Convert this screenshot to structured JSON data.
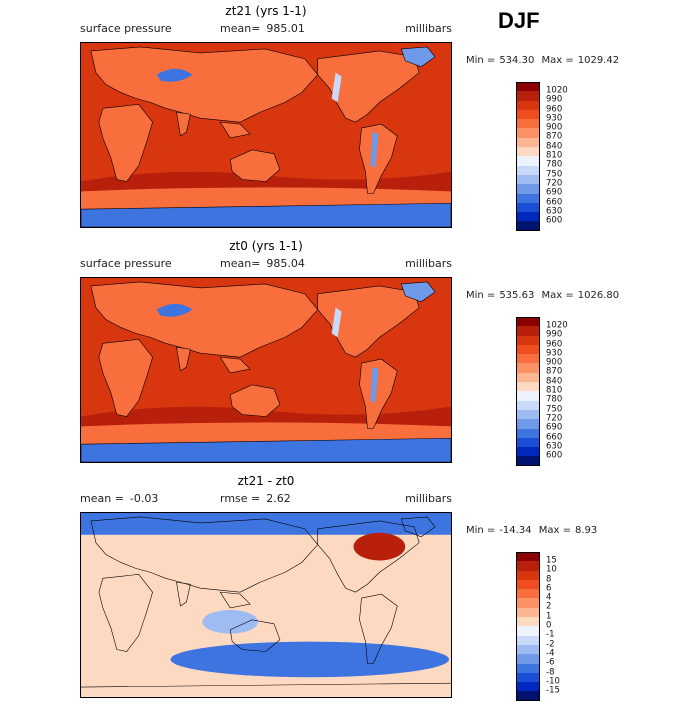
{
  "season": "DJF",
  "panels": [
    {
      "title": "zt21 (yrs 1-1)",
      "field": "surface pressure",
      "stat1_label": "mean=",
      "stat1_value": "985.01",
      "stat2_label": "",
      "stat2_value": "",
      "units": "millibars",
      "min_label": "Min =",
      "min_value": "534.30",
      "max_label": "Max =",
      "max_value": "1029.42",
      "kind": "abs",
      "levels": [
        "1020",
        "990",
        "960",
        "930",
        "900",
        "870",
        "840",
        "810",
        "780",
        "750",
        "720",
        "690",
        "660",
        "630",
        "600"
      ],
      "colors": [
        "#8b0000",
        "#b8200c",
        "#d7360f",
        "#ef4d1f",
        "#f96e3d",
        "#fb9266",
        "#fdb693",
        "#fed9c2",
        "#eef2ff",
        "#c9d9f9",
        "#9ebcf2",
        "#6f9aea",
        "#3e74e0",
        "#1a4fd5",
        "#0028c0",
        "#00146f"
      ]
    },
    {
      "title": "zt0 (yrs 1-1)",
      "field": "surface pressure",
      "stat1_label": "mean=",
      "stat1_value": "985.04",
      "stat2_label": "",
      "stat2_value": "",
      "units": "millibars",
      "min_label": "Min =",
      "min_value": "535.63",
      "max_label": "Max =",
      "max_value": "1026.80",
      "kind": "abs",
      "levels": [
        "1020",
        "990",
        "960",
        "930",
        "900",
        "870",
        "840",
        "810",
        "780",
        "750",
        "720",
        "690",
        "660",
        "630",
        "600"
      ],
      "colors": [
        "#8b0000",
        "#b8200c",
        "#d7360f",
        "#ef4d1f",
        "#f96e3d",
        "#fb9266",
        "#fdb693",
        "#fed9c2",
        "#eef2ff",
        "#c9d9f9",
        "#9ebcf2",
        "#6f9aea",
        "#3e74e0",
        "#1a4fd5",
        "#0028c0",
        "#00146f"
      ]
    },
    {
      "title": "zt21 - zt0",
      "field": "",
      "stat1_label": "mean =",
      "stat1_value": "-0.03",
      "stat2_label": "rmse =",
      "stat2_value": "2.62",
      "units": "millibars",
      "min_label": "Min =",
      "min_value": "-14.34",
      "max_label": "Max =",
      "max_value": "8.93",
      "kind": "diff",
      "levels": [
        "15",
        "10",
        "8",
        "6",
        "4",
        "2",
        "1",
        "0",
        "-1",
        "-2",
        "-4",
        "-6",
        "-8",
        "-10",
        "-15"
      ],
      "colors": [
        "#8b0000",
        "#b8200c",
        "#d7360f",
        "#ef4d1f",
        "#f96e3d",
        "#fb9266",
        "#fdb693",
        "#fed9c2",
        "#eef2ff",
        "#c9d9f9",
        "#9ebcf2",
        "#6f9aea",
        "#3e74e0",
        "#1a4fd5",
        "#0028c0",
        "#00146f"
      ]
    }
  ]
}
